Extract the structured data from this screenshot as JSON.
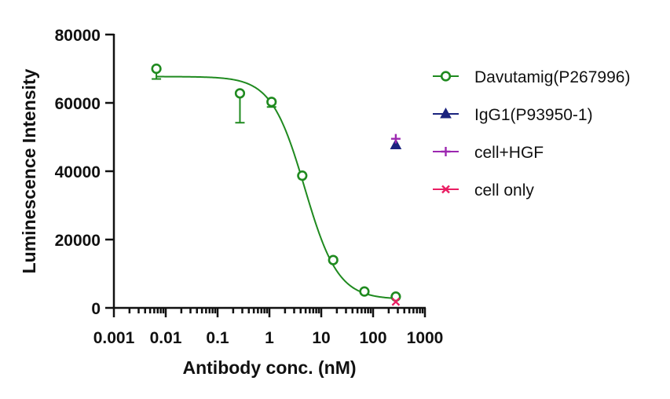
{
  "chart_data": {
    "type": "scatter",
    "title": "",
    "xlabel": "Antibody conc. (nM)",
    "ylabel": "Luminescence Intensity",
    "x_scale": "log",
    "xlim": [
      0.001,
      1000
    ],
    "ylim": [
      0,
      80000
    ],
    "x_tick_labels": [
      "0.001",
      "0.01",
      "0.1",
      "1",
      "10",
      "100",
      "1000"
    ],
    "y_tick_labels": [
      "0",
      "20000",
      "40000",
      "60000",
      "80000"
    ],
    "grid": false,
    "legend_position": "right",
    "series": [
      {
        "name": "Davutamig(P267996)",
        "marker": "open-circle",
        "color": "#1f8a1f",
        "x": [
          0.0066,
          0.27,
          1.1,
          4.3,
          17,
          68,
          274
        ],
        "y": [
          70000,
          62800,
          60300,
          38700,
          14000,
          4800,
          3300
        ],
        "error_lower": [
          67000,
          54200,
          58800,
          null,
          null,
          null,
          null
        ],
        "fit_curve": {
          "model": "4PL",
          "bottom": 2500,
          "top": 67700,
          "ec50": 4.8,
          "hill": 1.35
        }
      },
      {
        "name": "IgG1(P93950-1)",
        "marker": "filled-triangle",
        "color": "#1a237e",
        "x": [
          274
        ],
        "y": [
          47700
        ]
      },
      {
        "name": "cell+HGF",
        "marker": "plus",
        "color": "#9c27b0",
        "x": [
          274
        ],
        "y": [
          49500
        ]
      },
      {
        "name": "cell only",
        "marker": "cross",
        "color": "#e91e63",
        "x": [
          274
        ],
        "y": [
          1800
        ]
      }
    ]
  }
}
